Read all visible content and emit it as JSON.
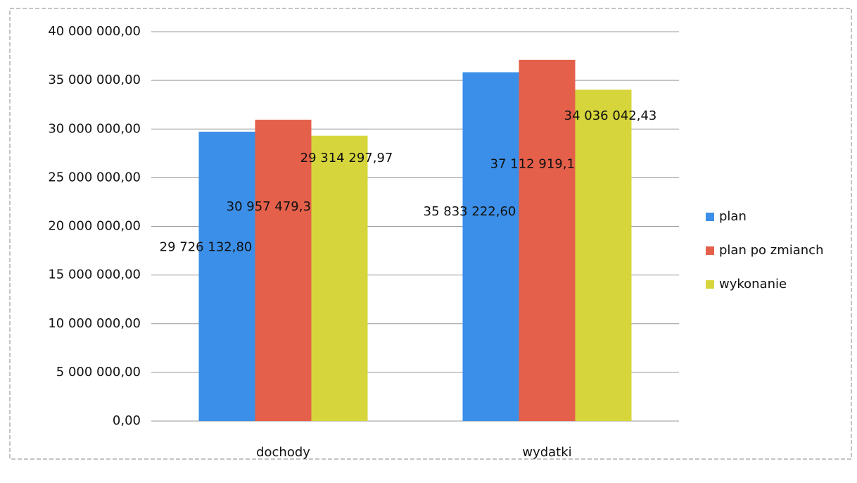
{
  "chart_data": {
    "type": "bar",
    "categories": [
      "dochody",
      "wydatki"
    ],
    "series": [
      {
        "name": "plan",
        "color": "#3b8fe8",
        "values": [
          29726132.8,
          35833222.6
        ],
        "value_labels": [
          "29 726 132,80",
          "35 833 222,60"
        ]
      },
      {
        "name": "plan po zmianch",
        "color": "#e5604a",
        "values": [
          30957479.33,
          37112919.13
        ],
        "value_labels": [
          "30 957 479,33",
          "37 112 919,13"
        ]
      },
      {
        "name": "wykonanie",
        "color": "#d6d63c",
        "values": [
          29314297.97,
          34036042.43
        ],
        "value_labels": [
          "29 314 297,97",
          "34 036 042,43"
        ]
      }
    ],
    "ylim": [
      0,
      40000000
    ],
    "yticks": [
      {
        "value": 0,
        "label": "0,00"
      },
      {
        "value": 5000000,
        "label": "5 000 000,00"
      },
      {
        "value": 10000000,
        "label": "10 000 000,00"
      },
      {
        "value": 15000000,
        "label": "15 000 000,00"
      },
      {
        "value": 20000000,
        "label": "20 000 000,00"
      },
      {
        "value": 25000000,
        "label": "25 000 000,00"
      },
      {
        "value": 30000000,
        "label": "30 000 000,00"
      },
      {
        "value": 35000000,
        "label": "35 000 000,00"
      },
      {
        "value": 40000000,
        "label": "40 000 000,00"
      }
    ],
    "grid": true,
    "legend": "right"
  }
}
